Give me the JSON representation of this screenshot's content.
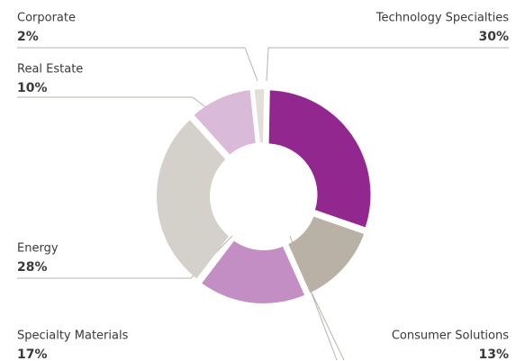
{
  "chart_data": {
    "type": "donut",
    "categories": [
      "Technology Specialties",
      "Consumer Solutions",
      "Specialty Materials",
      "Energy",
      "Real Estate",
      "Corporate"
    ],
    "values": [
      30,
      13,
      17,
      28,
      10,
      2
    ],
    "value_labels": [
      "30%",
      "13%",
      "17%",
      "28%",
      "10%",
      "2%"
    ],
    "colors": [
      "#92278f",
      "#b9b1a6",
      "#c38ec3",
      "#d4d0ca",
      "#d9bbd9",
      "#e2dfda"
    ]
  }
}
